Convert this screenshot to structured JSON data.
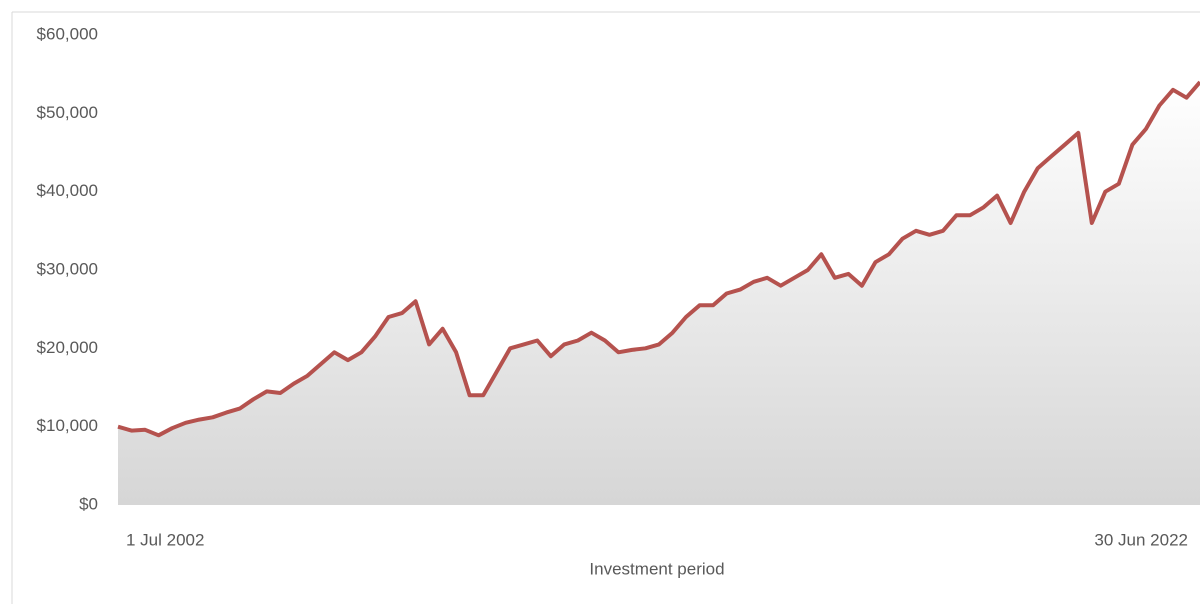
{
  "chart_data": {
    "type": "area",
    "x_label": "Investment period",
    "categories": [
      "1 Jul 2002",
      null,
      null,
      null,
      null,
      null,
      null,
      null,
      null,
      null,
      null,
      null,
      null,
      null,
      null,
      null,
      null,
      null,
      null,
      null,
      null,
      null,
      null,
      null,
      null,
      null,
      null,
      null,
      null,
      null,
      null,
      null,
      null,
      null,
      null,
      null,
      null,
      null,
      null,
      null,
      null,
      null,
      null,
      null,
      null,
      null,
      null,
      null,
      null,
      null,
      null,
      null,
      null,
      null,
      null,
      null,
      null,
      null,
      null,
      null,
      null,
      null,
      null,
      null,
      null,
      null,
      null,
      null,
      null,
      null,
      null,
      null,
      null,
      null,
      null,
      null,
      null,
      null,
      null,
      null,
      "30 Jun 2022"
    ],
    "values": [
      10000,
      9500,
      9600,
      8900,
      9800,
      10500,
      10900,
      11200,
      11800,
      12300,
      13500,
      14500,
      14300,
      15500,
      16500,
      18000,
      19500,
      18500,
      19500,
      21500,
      24000,
      24500,
      26000,
      20500,
      22500,
      19500,
      14000,
      14000,
      17000,
      20000,
      20500,
      21000,
      19000,
      20500,
      21000,
      22000,
      21000,
      19500,
      19800,
      20000,
      20500,
      22000,
      24000,
      25500,
      25500,
      27000,
      27500,
      28500,
      29000,
      28000,
      29000,
      30000,
      32000,
      29000,
      29500,
      28000,
      31000,
      32000,
      34000,
      35000,
      34500,
      35000,
      37000,
      37000,
      38000,
      39500,
      36000,
      40000,
      43000,
      44500,
      46000,
      47500,
      36000,
      40000,
      41000,
      46000,
      48000,
      51000,
      53000,
      52000,
      54000
    ],
    "color": "#b5524e",
    "ylim": [
      0,
      60000
    ],
    "yticks": [
      {
        "value": 0,
        "label": "$0"
      },
      {
        "value": 10000,
        "label": "$10,000"
      },
      {
        "value": 20000,
        "label": "$20,000"
      },
      {
        "value": 30000,
        "label": "$30,000"
      },
      {
        "value": 40000,
        "label": "$40,000"
      },
      {
        "value": 50000,
        "label": "$50,000"
      },
      {
        "value": 60000,
        "label": "$60,000"
      }
    ],
    "grid": false
  }
}
